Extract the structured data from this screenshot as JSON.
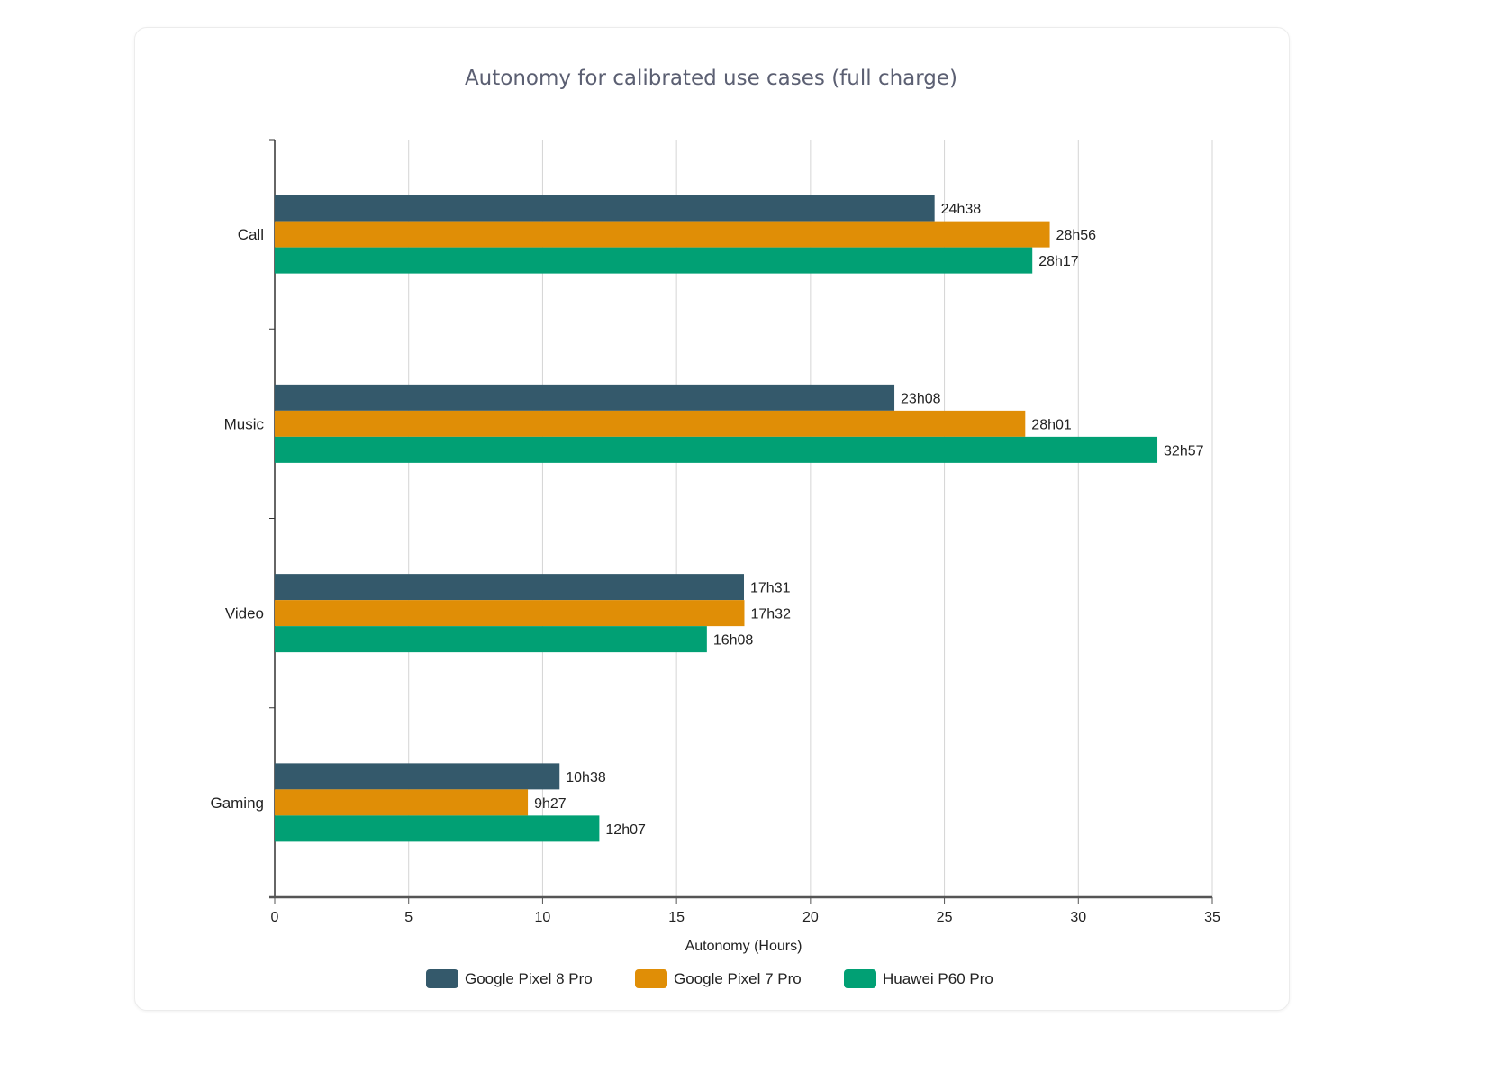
{
  "chart_data": {
    "type": "bar",
    "orientation": "horizontal",
    "title": "Autonomy for calibrated use cases (full charge)",
    "xlabel": "Autonomy (Hours)",
    "ylabel": "",
    "xlim": [
      0,
      35
    ],
    "xticks": [
      "0",
      "5",
      "10",
      "15",
      "20",
      "25",
      "30",
      "35"
    ],
    "grid": true,
    "legend_position": "bottom",
    "categories": [
      "Call",
      "Music",
      "Video",
      "Gaming"
    ],
    "series": [
      {
        "name": "Google Pixel 8 Pro",
        "color": "#34596b",
        "values": [
          24.633,
          23.133,
          17.517,
          10.633
        ],
        "labels": [
          "24h38",
          "23h08",
          "17h31",
          "10h38"
        ]
      },
      {
        "name": "Google Pixel 7 Pro",
        "color": "#e08e06",
        "values": [
          28.933,
          28.017,
          17.533,
          9.45
        ],
        "labels": [
          "28h56",
          "28h01",
          "17h32",
          "9h27"
        ]
      },
      {
        "name": "Huawei P60 Pro",
        "color": "#01a074",
        "values": [
          28.283,
          32.95,
          16.133,
          12.117
        ],
        "labels": [
          "28h17",
          "32h57",
          "16h08",
          "12h07"
        ]
      }
    ]
  }
}
